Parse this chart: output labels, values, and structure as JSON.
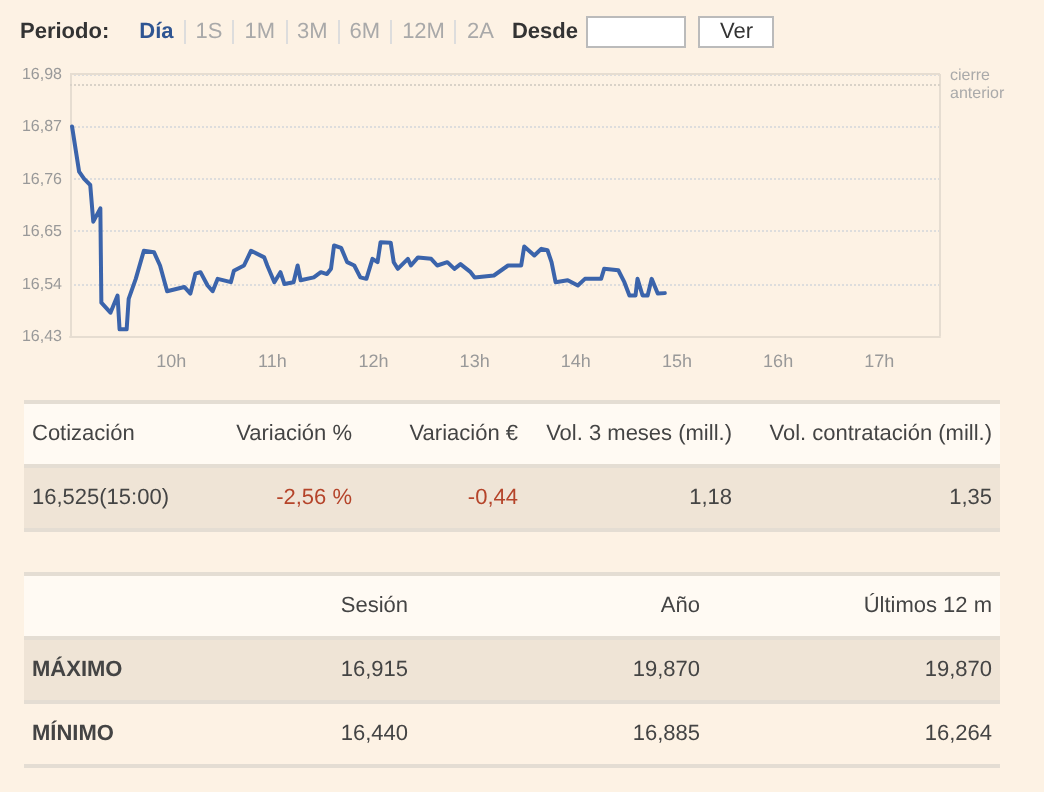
{
  "chart_data": [
    {
      "type": "other",
      "annotations": [
        "Periodo:",
        "Día",
        "1S",
        "1M",
        "3M",
        "6M",
        "12M",
        "2A",
        "Desde",
        "Ver"
      ]
    },
    {
      "type": "line",
      "xlim": [
        9,
        17.6
      ],
      "ylim": [
        16.43,
        16.98
      ],
      "xticks": [
        {
          "value": 10,
          "label": "10h"
        },
        {
          "value": 11,
          "label": "11h"
        },
        {
          "value": 12,
          "label": "12h"
        },
        {
          "value": 13,
          "label": "13h"
        },
        {
          "value": 14,
          "label": "14h"
        },
        {
          "value": 15,
          "label": "15h"
        },
        {
          "value": 16,
          "label": "16h"
        },
        {
          "value": 17,
          "label": "17h"
        }
      ],
      "yticks": [
        {
          "value": 16.43,
          "label": "16,43"
        },
        {
          "value": 16.54,
          "label": "16,54"
        },
        {
          "value": 16.65,
          "label": "16,65"
        },
        {
          "value": 16.76,
          "label": "16,76"
        },
        {
          "value": 16.87,
          "label": "16,87"
        },
        {
          "value": 16.98,
          "label": "16,98"
        }
      ],
      "grid": "y",
      "marker": "none",
      "line_style": "solid",
      "ref_lines": [
        {
          "axis": "y",
          "value": 16.96,
          "label": "cierre anterior",
          "color": "#d9d2c8",
          "line_style": "dotted"
        }
      ],
      "x": [
        9.02,
        9.09,
        9.14,
        9.2,
        9.23,
        9.3,
        9.31,
        9.4,
        9.47,
        9.49,
        9.56,
        9.58,
        9.65,
        9.73,
        9.83,
        9.89,
        9.96,
        10.13,
        10.19,
        10.24,
        10.29,
        10.36,
        10.41,
        10.46,
        10.59,
        10.62,
        10.72,
        10.79,
        10.92,
        10.95,
        11.02,
        11.08,
        11.12,
        11.21,
        11.25,
        11.28,
        11.41,
        11.48,
        11.54,
        11.58,
        11.61,
        11.68,
        11.74,
        11.81,
        11.87,
        11.93,
        11.99,
        12.04,
        12.07,
        12.17,
        12.2,
        12.24,
        12.34,
        12.37,
        12.44,
        12.57,
        12.63,
        12.73,
        12.8,
        12.86,
        12.96,
        13.0,
        13.19,
        13.33,
        13.46,
        13.49,
        13.59,
        13.66,
        13.72,
        13.76,
        13.8,
        13.92,
        14.02,
        14.09,
        14.25,
        14.28,
        14.42,
        14.48,
        14.53,
        14.59,
        14.61,
        14.66,
        14.71,
        14.75,
        14.81,
        14.88
      ],
      "series": [
        {
          "color": "#3b64ab",
          "values": [
            16.87,
            16.775,
            16.76,
            16.747,
            16.67,
            16.698,
            16.5,
            16.479,
            16.515,
            16.444,
            16.444,
            16.508,
            16.55,
            16.609,
            16.606,
            16.578,
            16.524,
            16.533,
            16.519,
            16.561,
            16.564,
            16.536,
            16.524,
            16.55,
            16.543,
            16.567,
            16.578,
            16.609,
            16.595,
            16.578,
            16.543,
            16.564,
            16.539,
            16.543,
            16.578,
            16.547,
            16.553,
            16.564,
            16.56,
            16.571,
            16.62,
            16.615,
            16.585,
            16.578,
            16.553,
            16.55,
            16.592,
            16.585,
            16.627,
            16.626,
            16.585,
            16.571,
            16.592,
            16.578,
            16.595,
            16.592,
            16.578,
            16.585,
            16.571,
            16.581,
            16.564,
            16.553,
            16.557,
            16.578,
            16.578,
            16.618,
            16.599,
            16.613,
            16.61,
            16.585,
            16.543,
            16.547,
            16.536,
            16.55,
            16.55,
            16.571,
            16.568,
            16.543,
            16.515,
            16.515,
            16.55,
            16.515,
            16.515,
            16.55,
            16.519,
            16.52
          ]
        }
      ]
    },
    {
      "type": "other",
      "categories": [
        "Cotización",
        "Variación %",
        "Variación €",
        "Vol. 3 meses (mill.)",
        "Vol. contratación (mill.)"
      ],
      "cell_labels": [
        [
          "16,525(15:00)",
          "-2,56 %",
          "-0,44",
          "1,18",
          "1,35"
        ]
      ],
      "colors": [
        "#444444",
        "#b5442a",
        "#b5442a",
        "#444444",
        "#444444"
      ]
    },
    {
      "type": "other",
      "categories": [
        null,
        "Sesión",
        "Año",
        "Últimos 12 m"
      ],
      "cell_labels": [
        [
          "MÁXIMO",
          "16,915",
          "19,870",
          "19,870"
        ],
        [
          "MÍNIMO",
          "16,440",
          "16,885",
          "16,264"
        ]
      ]
    }
  ]
}
